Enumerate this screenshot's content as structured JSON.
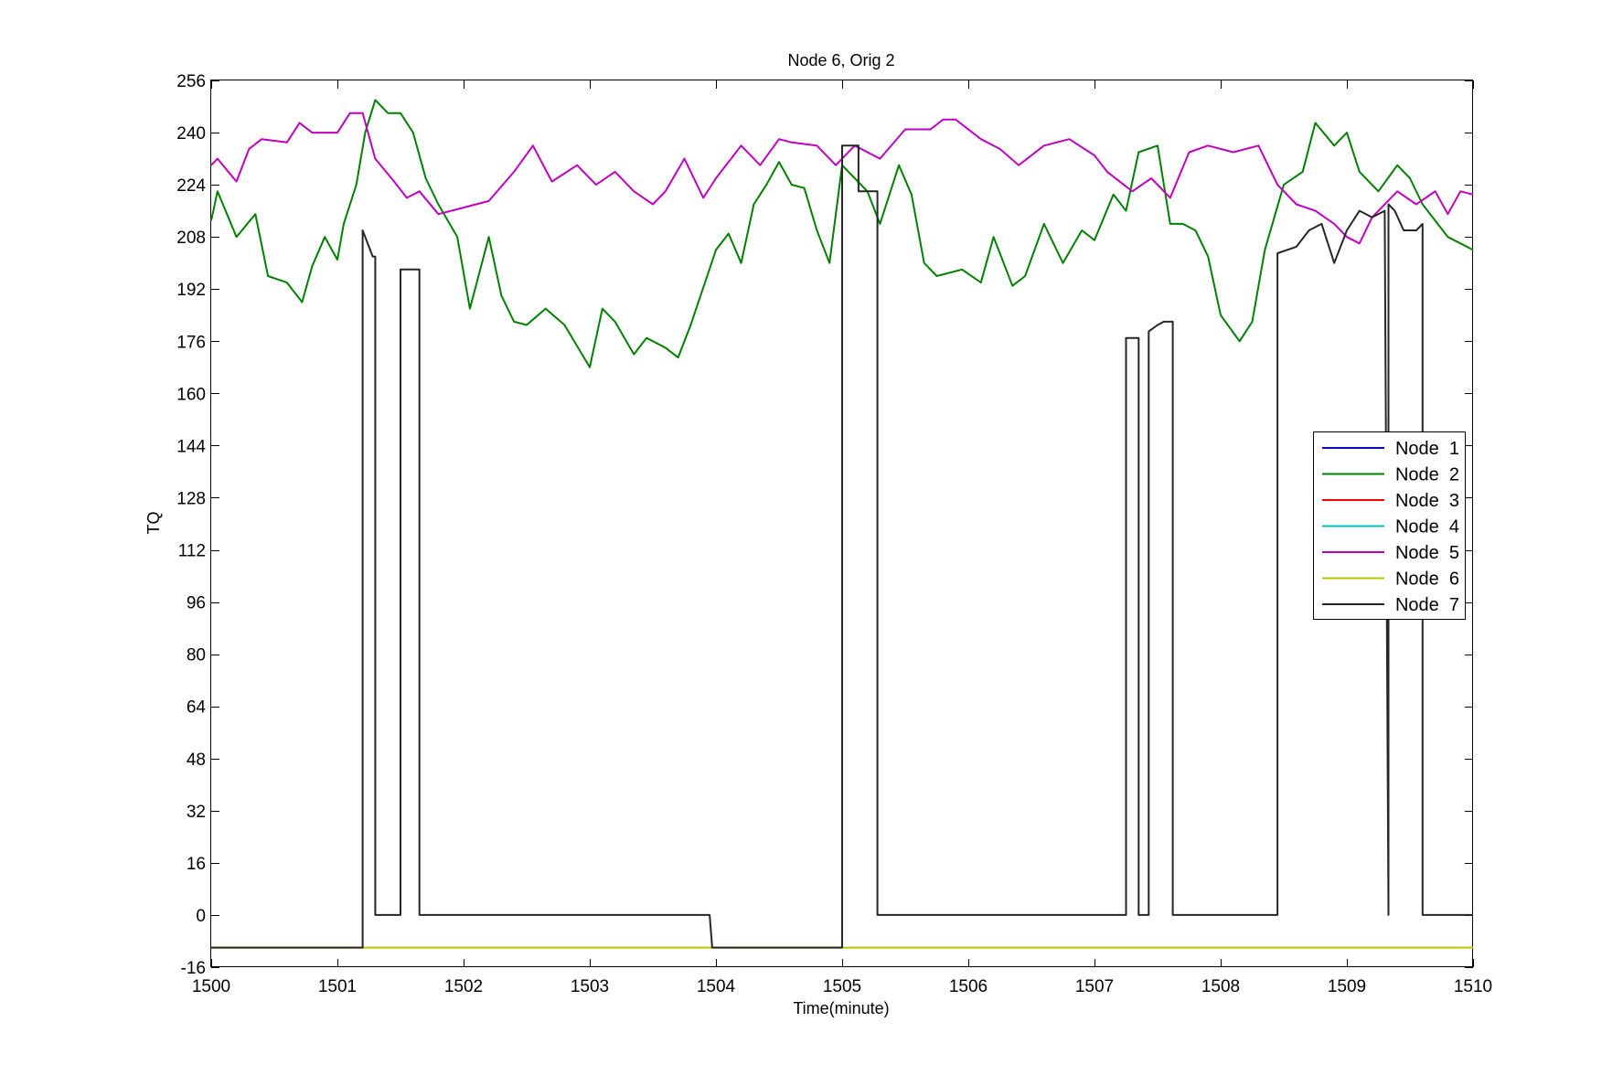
{
  "chart_data": {
    "type": "line",
    "title": "Node 6, Orig 2",
    "xlabel": "Time(minute)",
    "ylabel": "TQ",
    "xlim": [
      1500,
      1510
    ],
    "ylim": [
      -16,
      256
    ],
    "xticks": [
      1500,
      1501,
      1502,
      1503,
      1504,
      1505,
      1506,
      1507,
      1508,
      1509,
      1510
    ],
    "yticks": [
      -16,
      0,
      16,
      32,
      48,
      64,
      80,
      96,
      112,
      128,
      144,
      160,
      176,
      192,
      208,
      224,
      240,
      256
    ],
    "legend_position": "right",
    "series": [
      {
        "name": "Node  1",
        "color": "#0000ff",
        "x": [],
        "y": []
      },
      {
        "name": "Node  2",
        "color": "#008000",
        "x": [
          1500.0,
          1500.05,
          1500.2,
          1500.35,
          1500.45,
          1500.6,
          1500.72,
          1500.8,
          1500.9,
          1501.0,
          1501.05,
          1501.15,
          1501.22,
          1501.3,
          1501.4,
          1501.5,
          1501.6,
          1501.7,
          1501.8,
          1501.95,
          1502.05,
          1502.2,
          1502.3,
          1502.4,
          1502.5,
          1502.65,
          1502.8,
          1503.0,
          1503.1,
          1503.2,
          1503.35,
          1503.45,
          1503.6,
          1503.7,
          1503.8,
          1504.0,
          1504.1,
          1504.2,
          1504.3,
          1504.4,
          1504.5,
          1504.6,
          1504.7,
          1504.8,
          1504.9,
          1505.0,
          1505.1,
          1505.2,
          1505.3,
          1505.45,
          1505.55,
          1505.65,
          1505.75,
          1505.95,
          1506.1,
          1506.2,
          1506.35,
          1506.45,
          1506.6,
          1506.75,
          1506.9,
          1507.0,
          1507.15,
          1507.25,
          1507.35,
          1507.5,
          1507.6,
          1507.7,
          1507.8,
          1507.9,
          1508.0,
          1508.15,
          1508.25,
          1508.35,
          1508.5,
          1508.65,
          1508.75,
          1508.9,
          1509.0,
          1509.1,
          1509.25,
          1509.4,
          1509.5,
          1509.6,
          1509.8,
          1510.0
        ],
        "y": [
          213,
          222,
          208,
          215,
          196,
          194,
          188,
          199,
          208,
          201,
          212,
          224,
          240,
          250,
          246,
          246,
          240,
          226,
          218,
          208,
          186,
          208,
          190,
          182,
          181,
          186,
          181,
          168,
          186,
          182,
          172,
          177,
          174,
          171,
          181,
          204,
          209,
          200,
          218,
          224,
          231,
          224,
          223,
          210,
          200,
          230,
          226,
          222,
          212,
          230,
          221,
          200,
          196,
          198,
          194,
          208,
          193,
          196,
          212,
          200,
          210,
          207,
          221,
          216,
          234,
          236,
          212,
          212,
          210,
          202,
          184,
          176,
          182,
          204,
          224,
          228,
          243,
          236,
          240,
          228,
          222,
          230,
          226,
          218,
          208,
          204
        ]
      },
      {
        "name": "Node  3",
        "color": "#ff0000",
        "x": [],
        "y": []
      },
      {
        "name": "Node  4",
        "color": "#00bfbf",
        "x": [],
        "y": []
      },
      {
        "name": "Node  5",
        "color": "#bf00bf",
        "x": [
          1500.0,
          1500.05,
          1500.2,
          1500.3,
          1500.4,
          1500.6,
          1500.7,
          1500.8,
          1501.0,
          1501.1,
          1501.2,
          1501.3,
          1501.45,
          1501.55,
          1501.65,
          1501.8,
          1502.0,
          1502.2,
          1502.4,
          1502.55,
          1502.7,
          1502.9,
          1503.05,
          1503.2,
          1503.35,
          1503.5,
          1503.6,
          1503.75,
          1503.9,
          1504.0,
          1504.2,
          1504.35,
          1504.5,
          1504.6,
          1504.8,
          1504.95,
          1505.1,
          1505.3,
          1505.5,
          1505.7,
          1505.8,
          1505.9,
          1506.1,
          1506.25,
          1506.4,
          1506.6,
          1506.8,
          1507.0,
          1507.1,
          1507.3,
          1507.45,
          1507.6,
          1507.75,
          1507.9,
          1508.1,
          1508.3,
          1508.45,
          1508.6,
          1508.75,
          1508.9,
          1509.0,
          1509.1,
          1509.2,
          1509.4,
          1509.55,
          1509.7,
          1509.8,
          1509.9,
          1510.0
        ],
        "y": [
          230,
          232,
          225,
          235,
          238,
          237,
          243,
          240,
          240,
          246,
          246,
          232,
          225,
          220,
          222,
          215,
          217,
          219,
          228,
          236,
          225,
          230,
          224,
          228,
          222,
          218,
          222,
          232,
          220,
          226,
          236,
          230,
          238,
          237,
          236,
          230,
          236,
          232,
          241,
          241,
          244,
          244,
          238,
          235,
          230,
          236,
          238,
          233,
          228,
          222,
          226,
          220,
          234,
          236,
          234,
          236,
          224,
          218,
          216,
          212,
          208,
          206,
          214,
          222,
          218,
          222,
          215,
          222,
          221
        ]
      },
      {
        "name": "Node  6",
        "color": "#bfbf00",
        "x": [
          1500.0,
          1510.0
        ],
        "y": [
          -10,
          -10
        ]
      },
      {
        "name": "Node  7",
        "color": "#262626",
        "x": [
          1500.0,
          1501.2,
          1501.2,
          1501.22,
          1501.28,
          1501.3,
          1501.3,
          1501.5,
          1501.5,
          1501.65,
          1501.65,
          1503.95,
          1503.97,
          1505.0,
          1505.0,
          1505.13,
          1505.13,
          1505.28,
          1505.28,
          1507.25,
          1507.25,
          1507.35,
          1507.35,
          1507.43,
          1507.43,
          1507.5,
          1507.55,
          1507.62,
          1507.62,
          1508.45,
          1508.45,
          1508.6,
          1508.7,
          1508.8,
          1508.9,
          1509.0,
          1509.1,
          1509.2,
          1509.3,
          1509.33,
          1509.33,
          1509.38,
          1509.45,
          1509.55,
          1509.6,
          1509.6,
          1510.0
        ],
        "y": [
          -10,
          -10,
          210,
          208,
          202,
          202,
          0,
          0,
          198,
          198,
          0,
          0,
          -10,
          -10,
          236,
          236,
          222,
          222,
          0,
          0,
          177,
          177,
          0,
          0,
          179,
          181,
          182,
          182,
          0,
          0,
          203,
          205,
          210,
          212,
          200,
          210,
          216,
          214,
          216,
          0,
          218,
          216,
          210,
          210,
          212,
          0,
          0
        ]
      }
    ]
  }
}
